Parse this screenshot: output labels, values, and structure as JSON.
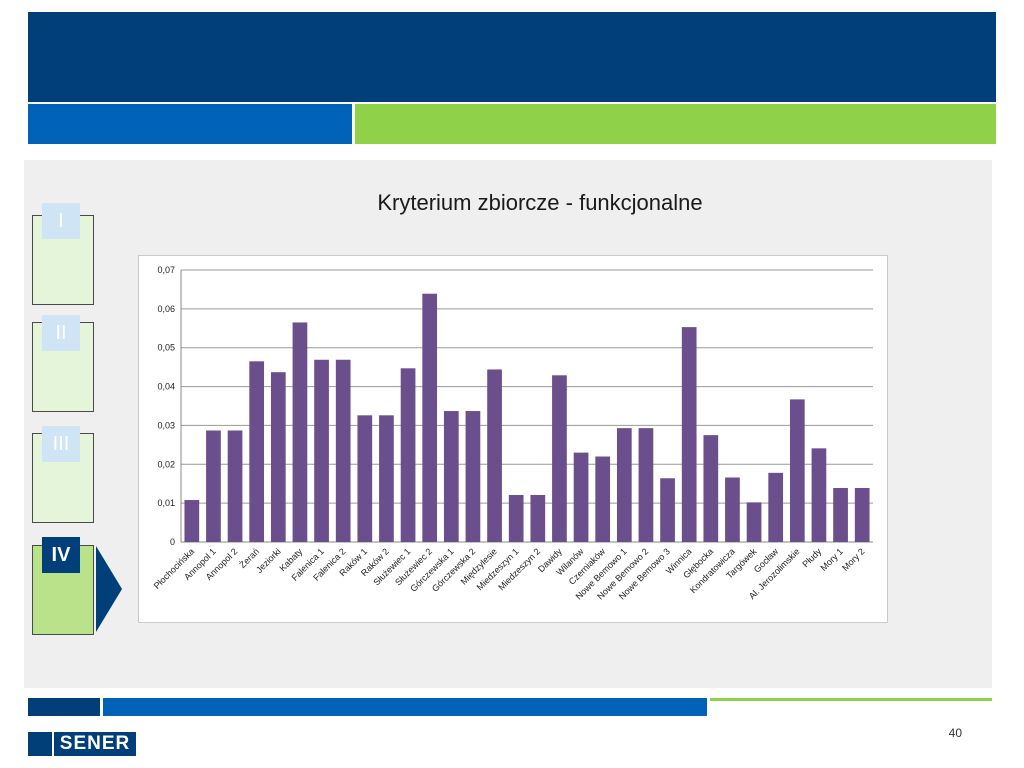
{
  "slide": {
    "title": "Kryterium zbiorcze - funkcjonalne",
    "page_number": "40"
  },
  "steps": [
    {
      "label": "I",
      "active": false
    },
    {
      "label": "II",
      "active": false
    },
    {
      "label": "III",
      "active": false
    },
    {
      "label": "IV",
      "active": true
    }
  ],
  "logo": {
    "text": "SENER"
  },
  "colors": {
    "navy": "#003f7a",
    "blue": "#0063b8",
    "green": "#8fd24a",
    "bar": "#6b4e8c"
  },
  "chart_data": {
    "type": "bar",
    "title": "",
    "xlabel": "",
    "ylabel": "",
    "ylim": [
      0,
      0.07
    ],
    "yticks": [
      "0",
      "0,01",
      "0,02",
      "0,03",
      "0,04",
      "0,05",
      "0,06",
      "0,07"
    ],
    "grid": true,
    "categories": [
      "Płochocińska",
      "Annopol 1",
      "Annopol 2",
      "Żerań",
      "Jeziorki",
      "Kabaty",
      "Falenica 1",
      "Falenica 2",
      "Raków 1",
      "Raków 2",
      "Służewiec 1",
      "Służewiec 2",
      "Górczewska 1",
      "Górczewska 2",
      "Międzylesie",
      "Miedzeszyn 1",
      "Miedzeszyn 2",
      "Dawidy",
      "Wilanów",
      "Czerniaków",
      "Nowe Bemowo 1",
      "Nowe Bemowo 2",
      "Nowe Bemowo 3",
      "Winnica",
      "Głębocka",
      "Kondratowicza",
      "Targówek",
      "Gocław",
      "Al. Jerozolimskie",
      "Płudy",
      "Mory 1",
      "Mory 2"
    ],
    "values": [
      0.0108,
      0.0287,
      0.0287,
      0.0465,
      0.0437,
      0.0565,
      0.0469,
      0.0469,
      0.0326,
      0.0326,
      0.0447,
      0.0639,
      0.0337,
      0.0337,
      0.0444,
      0.0121,
      0.0121,
      0.0429,
      0.023,
      0.022,
      0.0293,
      0.0293,
      0.0164,
      0.0553,
      0.0275,
      0.0166,
      0.0102,
      0.0178,
      0.0367,
      0.0241,
      0.0139,
      0.0139
    ]
  }
}
